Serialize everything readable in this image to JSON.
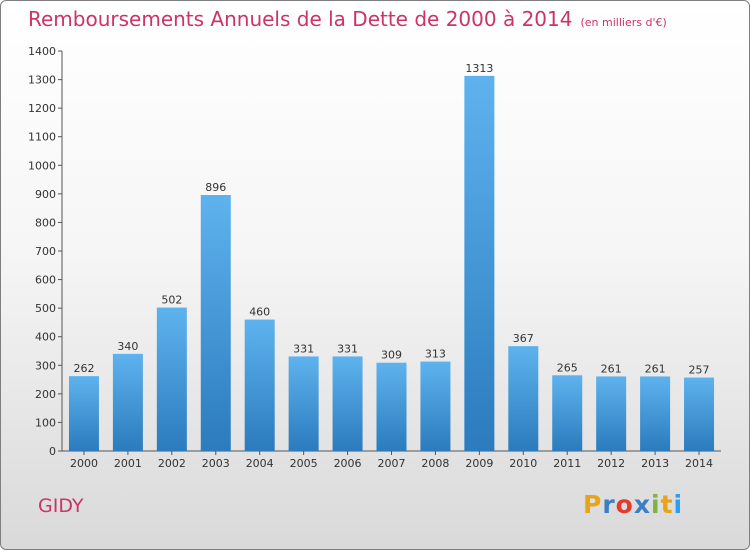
{
  "header": {
    "title": "Remboursements Annuels de la Dette de 2000 à 2014",
    "unit": "(en milliers d'€)"
  },
  "footer": {
    "commune": "GIDY",
    "logo_text": "Proxiti",
    "logo_colors": [
      "#e8a317",
      "#3a7fc4",
      "#e23b2e",
      "#3a7fc4",
      "#7cb342",
      "#e8a317",
      "#2a9df4"
    ]
  },
  "chart_data": {
    "type": "bar",
    "categories": [
      "2000",
      "2001",
      "2002",
      "2003",
      "2004",
      "2005",
      "2006",
      "2007",
      "2008",
      "2009",
      "2010",
      "2011",
      "2012",
      "2013",
      "2014"
    ],
    "values": [
      262,
      340,
      502,
      896,
      460,
      331,
      331,
      309,
      313,
      1313,
      367,
      265,
      261,
      261,
      257
    ],
    "ylim": [
      0,
      1400
    ],
    "yticks": [
      0,
      100,
      200,
      300,
      400,
      500,
      600,
      700,
      800,
      900,
      1000,
      1100,
      1200,
      1300,
      1400
    ],
    "grid": false,
    "bar_color_top": "#5eb3ee",
    "bar_color_bottom": "#2b7bbd",
    "label_color": "#333333",
    "title": "Remboursements Annuels de la Dette de 2000 à 2014",
    "xlabel": "",
    "ylabel": ""
  }
}
